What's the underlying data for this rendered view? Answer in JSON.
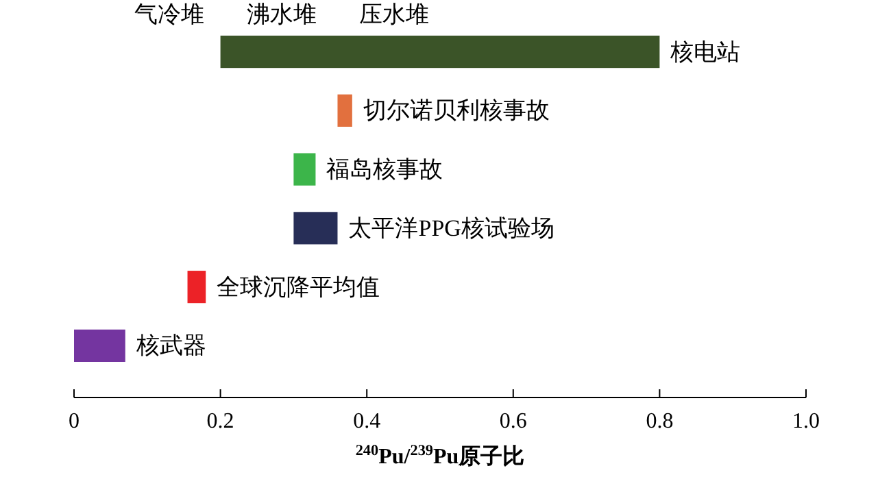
{
  "chart_data": {
    "type": "bar",
    "orientation": "horizontal",
    "categories": [
      "核电站",
      "切尔诺贝利核事故",
      "福岛核事故",
      "太平洋PPG核试验场",
      "全球沉降平均值",
      "核武器"
    ],
    "values": [
      0.6,
      0.02,
      0.03,
      0.06,
      0.025,
      0.07
    ],
    "base": [
      0.2,
      0.36,
      0.3,
      0.3,
      0.155,
      0
    ],
    "colors": [
      "#3b5428",
      "#e2703e",
      "#3cb54a",
      "#272e57",
      "#ec2227",
      "#7435a0"
    ],
    "xlim": [
      0,
      1
    ],
    "xticks": [
      0,
      0.2,
      0.4,
      0.6,
      0.8,
      {
        "value": 1,
        "label": "1.0"
      }
    ],
    "xlabel": "$^{240}$Pu/$^{239}$Pu原子比",
    "annotations": [
      "气冷堆",
      "沸水堆",
      "压水堆"
    ],
    "grid": false
  }
}
